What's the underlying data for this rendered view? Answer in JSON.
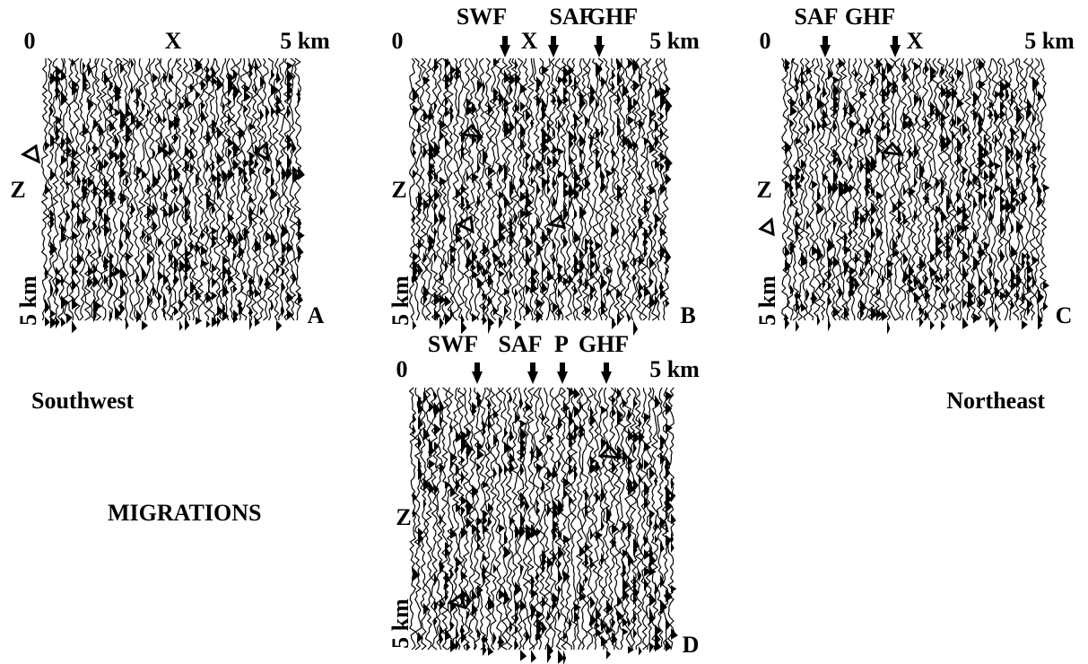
{
  "panels": [
    {
      "id": "A",
      "origin": "0",
      "x_end": "5 km",
      "markers": [
        "X"
      ],
      "depth": "Z",
      "depth_end": "5 km"
    },
    {
      "id": "B",
      "origin": "0",
      "x_end": "5 km",
      "markers": [
        "SWF",
        "X",
        "SAF",
        "GHF"
      ],
      "depth": "Z",
      "depth_end": "5 km"
    },
    {
      "id": "C",
      "origin": "0",
      "x_end": "5 km",
      "markers": [
        "SAF",
        "GHF",
        "X"
      ],
      "depth": "Z",
      "depth_end": "5 km"
    },
    {
      "id": "D",
      "origin": "0",
      "x_end": "5 km",
      "markers": [
        "SWF",
        "SAF",
        "P",
        "GHF"
      ],
      "depth": "Z",
      "depth_end": "5 km"
    }
  ],
  "labels": {
    "southwest": "Southwest",
    "northeast": "Northeast",
    "caption": "MIGRATIONS"
  }
}
